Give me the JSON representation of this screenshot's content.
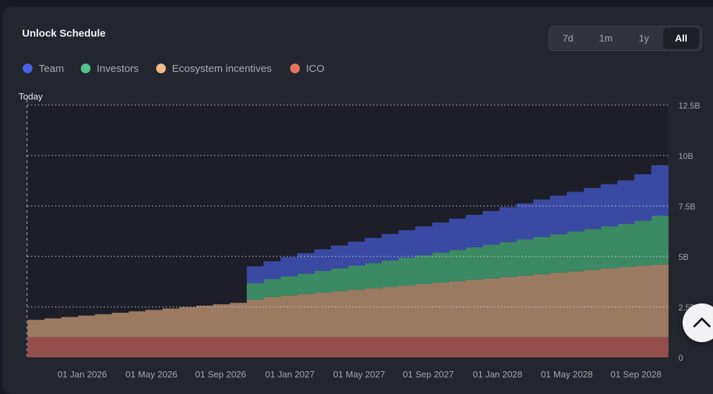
{
  "header": {
    "title": "Unlock Schedule"
  },
  "range": {
    "options": [
      "7d",
      "1m",
      "1y",
      "All"
    ],
    "selected": "All"
  },
  "colors": {
    "team": "#3a4aa3",
    "investors": "#3c8a64",
    "ecosystem": "#9b7a62",
    "ico": "#944f4c",
    "plot_bg": "#1d1e28",
    "legend_team": "#4b62e6",
    "legend_investors": "#4fc38a",
    "legend_ecosystem": "#efbb8c",
    "legend_ico": "#e3735e"
  },
  "chart_data": {
    "type": "area",
    "title": "Unlock Schedule",
    "step": true,
    "stacked": true,
    "marker_label": "Today",
    "x_tick_labels": [
      "01 Jan 2026",
      "01 May 2026",
      "01 Sep 2026",
      "01 Jan 2027",
      "01 May 2027",
      "01 Sep 2027",
      "01 Jan 2028",
      "01 May 2028",
      "01 Sep 2028"
    ],
    "y_tick_labels": [
      "0",
      "2.5B",
      "5B",
      "7.5B",
      "10B",
      "12.5B"
    ],
    "ylim": [
      0,
      12.5
    ],
    "y_unit": "B",
    "x": [
      "2025-10-01",
      "2025-11-01",
      "2025-12-01",
      "2026-01-01",
      "2026-02-01",
      "2026-03-01",
      "2026-04-01",
      "2026-05-01",
      "2026-06-01",
      "2026-07-01",
      "2026-08-01",
      "2026-09-01",
      "2026-10-01",
      "2026-11-01",
      "2026-12-01",
      "2027-01-01",
      "2027-02-01",
      "2027-03-01",
      "2027-04-01",
      "2027-05-01",
      "2027-06-01",
      "2027-07-01",
      "2027-08-01",
      "2027-09-01",
      "2027-10-01",
      "2027-11-01",
      "2027-12-01",
      "2028-01-01",
      "2028-02-01",
      "2028-03-01",
      "2028-04-01",
      "2028-05-01",
      "2028-06-01",
      "2028-07-01",
      "2028-08-01",
      "2028-09-01",
      "2028-10-01",
      "2028-11-01"
    ],
    "series": [
      {
        "name": "ICO",
        "values": [
          1.0,
          1.0,
          1.0,
          1.0,
          1.0,
          1.0,
          1.0,
          1.0,
          1.0,
          1.0,
          1.0,
          1.0,
          1.0,
          1.0,
          1.0,
          1.0,
          1.0,
          1.0,
          1.0,
          1.0,
          1.0,
          1.0,
          1.0,
          1.0,
          1.0,
          1.0,
          1.0,
          1.0,
          1.0,
          1.0,
          1.0,
          1.0,
          1.0,
          1.0,
          1.0,
          1.0,
          1.0,
          1.0
        ]
      },
      {
        "name": "Ecosystem incentives",
        "values": [
          0.86,
          0.93,
          1.0,
          1.07,
          1.14,
          1.21,
          1.28,
          1.35,
          1.42,
          1.49,
          1.56,
          1.63,
          1.7,
          1.85,
          1.98,
          2.07,
          2.14,
          2.21,
          2.28,
          2.35,
          2.42,
          2.49,
          2.56,
          2.63,
          2.7,
          2.77,
          2.84,
          2.91,
          2.98,
          3.05,
          3.12,
          3.19,
          3.26,
          3.33,
          3.4,
          3.47,
          3.54,
          3.6
        ]
      },
      {
        "name": "Investors",
        "values": [
          0,
          0,
          0,
          0,
          0,
          0,
          0,
          0,
          0,
          0,
          0,
          0,
          0,
          0.83,
          0.9,
          0.95,
          1.01,
          1.07,
          1.13,
          1.19,
          1.25,
          1.31,
          1.37,
          1.43,
          1.49,
          1.55,
          1.61,
          1.67,
          1.73,
          1.79,
          1.85,
          1.91,
          1.97,
          2.03,
          2.09,
          2.15,
          2.23,
          2.42
        ]
      },
      {
        "name": "Team",
        "values": [
          0,
          0,
          0,
          0,
          0,
          0,
          0,
          0,
          0,
          0,
          0,
          0,
          0,
          0.83,
          0.88,
          0.95,
          1.01,
          1.07,
          1.13,
          1.19,
          1.25,
          1.31,
          1.37,
          1.43,
          1.49,
          1.55,
          1.61,
          1.67,
          1.73,
          1.79,
          1.85,
          1.91,
          1.97,
          2.03,
          2.09,
          2.15,
          2.3,
          2.5
        ]
      }
    ]
  }
}
